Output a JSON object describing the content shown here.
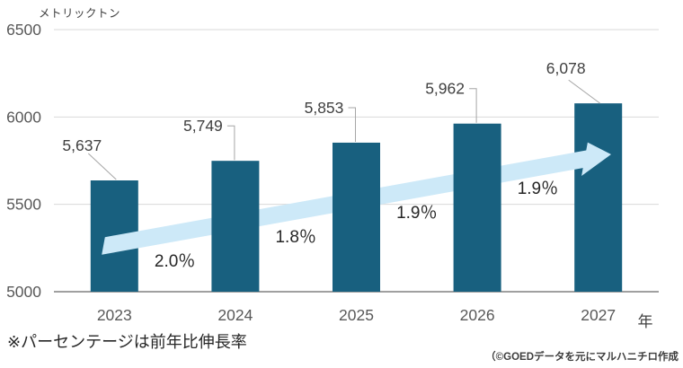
{
  "chart_data": {
    "type": "bar",
    "title": "",
    "unit_label": "メトリックトン",
    "x_axis_suffix": "年",
    "categories": [
      "2023",
      "2024",
      "2025",
      "2026",
      "2027"
    ],
    "values": [
      5637,
      5749,
      5853,
      5962,
      6078
    ],
    "value_labels": [
      "5,637",
      "5,749",
      "5,853",
      "5,962",
      "6,078"
    ],
    "growth_rates": [
      "2.0％",
      "1.8％",
      "1.9％",
      "1.9％"
    ],
    "ylim": [
      5000,
      6500
    ],
    "y_ticks": [
      6500,
      6000,
      5500,
      5000
    ],
    "grid": true,
    "legend": "none",
    "trend_arrow": "up-right"
  },
  "footnote": "※パーセンテージは前年比伸長率",
  "credit": "（©GOEDデータを元にマルハニチロ作成",
  "colors": {
    "bar": "#18607f",
    "arrow": "#cde9f8",
    "gridline": "#d9d9d9",
    "axis_line": "#a0a0a0",
    "leader_line": "#a6a6a6",
    "tick_text": "#595959",
    "label_text": "#404040",
    "percent_text": "#262626"
  }
}
